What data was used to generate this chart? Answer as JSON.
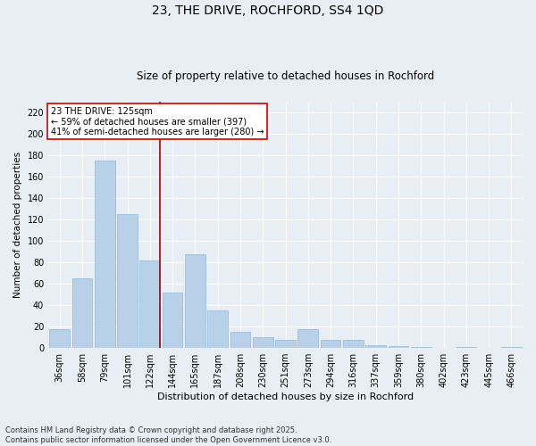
{
  "title": "23, THE DRIVE, ROCHFORD, SS4 1QD",
  "subtitle": "Size of property relative to detached houses in Rochford",
  "xlabel": "Distribution of detached houses by size in Rochford",
  "ylabel": "Number of detached properties",
  "categories": [
    "36sqm",
    "58sqm",
    "79sqm",
    "101sqm",
    "122sqm",
    "144sqm",
    "165sqm",
    "187sqm",
    "208sqm",
    "230sqm",
    "251sqm",
    "273sqm",
    "294sqm",
    "316sqm",
    "337sqm",
    "359sqm",
    "380sqm",
    "402sqm",
    "423sqm",
    "445sqm",
    "466sqm"
  ],
  "values": [
    18,
    65,
    175,
    125,
    82,
    52,
    88,
    35,
    15,
    10,
    8,
    18,
    8,
    8,
    3,
    2,
    1,
    0,
    1,
    0,
    1
  ],
  "bar_color": "#b8d0e8",
  "bar_edge_color": "#90b8d8",
  "background_color": "#e8eef4",
  "grid_color": "#ffffff",
  "red_line_index": 4,
  "annotation_text_line1": "23 THE DRIVE: 125sqm",
  "annotation_text_line2": "← 59% of detached houses are smaller (397)",
  "annotation_text_line3": "41% of semi-detached houses are larger (280) →",
  "annotation_box_color": "#ffffff",
  "annotation_box_edge": "#cc0000",
  "red_line_color": "#aa0000",
  "footer_text": "Contains HM Land Registry data © Crown copyright and database right 2025.\nContains public sector information licensed under the Open Government Licence v3.0.",
  "ylim": [
    0,
    230
  ],
  "yticks": [
    0,
    20,
    40,
    60,
    80,
    100,
    120,
    140,
    160,
    180,
    200,
    220
  ],
  "title_fontsize": 10,
  "subtitle_fontsize": 8.5,
  "ylabel_fontsize": 7.5,
  "xlabel_fontsize": 8,
  "tick_fontsize": 7,
  "footer_fontsize": 6,
  "annotation_fontsize": 7
}
